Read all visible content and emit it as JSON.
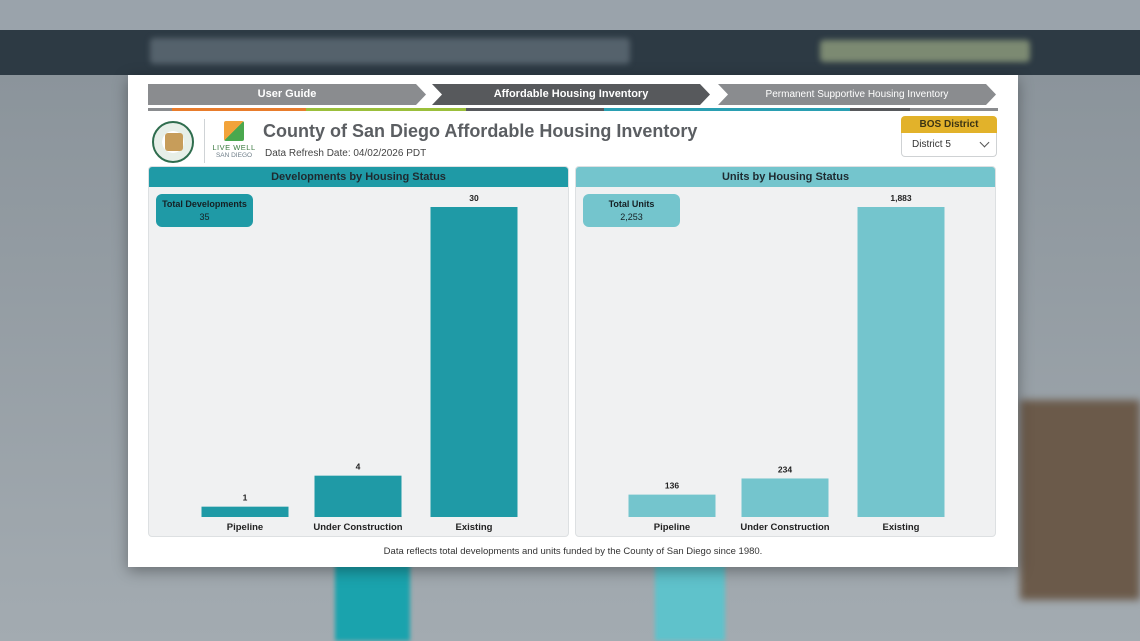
{
  "nav": {
    "tabs": [
      {
        "label": "User Guide"
      },
      {
        "label": "Affordable Housing Inventory"
      },
      {
        "label": "Permanent Supportive Housing Inventory"
      }
    ],
    "accent_colors": [
      "#8a8c8f",
      "#e87c2c",
      "#9bbf3b",
      "#57595c",
      "#2a9fb2",
      "#57595c",
      "#8a8c8f"
    ]
  },
  "header": {
    "live_well_line1": "LIVE WELL",
    "live_well_line2": "SAN DIEGO",
    "title": "County of San Diego Affordable Housing Inventory",
    "refresh": "Data Refresh Date: 04/02/2026 PDT"
  },
  "bos_filter": {
    "label": "BOS District",
    "selected": "District 5"
  },
  "panels": {
    "developments": {
      "title": "Developments by Housing Status",
      "kpi_label": "Total Developments",
      "kpi_value": "35"
    },
    "units": {
      "title": "Units by Housing Status",
      "kpi_label": "Total Units",
      "kpi_value": "2,253"
    }
  },
  "colors": {
    "developments_bar": "#1f9aa6",
    "units_bar": "#74c5cd"
  },
  "chart_data": [
    {
      "type": "bar",
      "title": "Developments by Housing Status",
      "categories": [
        "Pipeline",
        "Under Construction",
        "Existing"
      ],
      "values": [
        1,
        4,
        30
      ],
      "value_labels": [
        "1",
        "4",
        "30"
      ]
    },
    {
      "type": "bar",
      "title": "Units by Housing Status",
      "categories": [
        "Pipeline",
        "Under Construction",
        "Existing"
      ],
      "values": [
        136,
        234,
        1883
      ],
      "value_labels": [
        "136",
        "234",
        "1,883"
      ]
    }
  ],
  "footnote": "Data reflects total developments and units funded by the County of San Diego since 1980."
}
